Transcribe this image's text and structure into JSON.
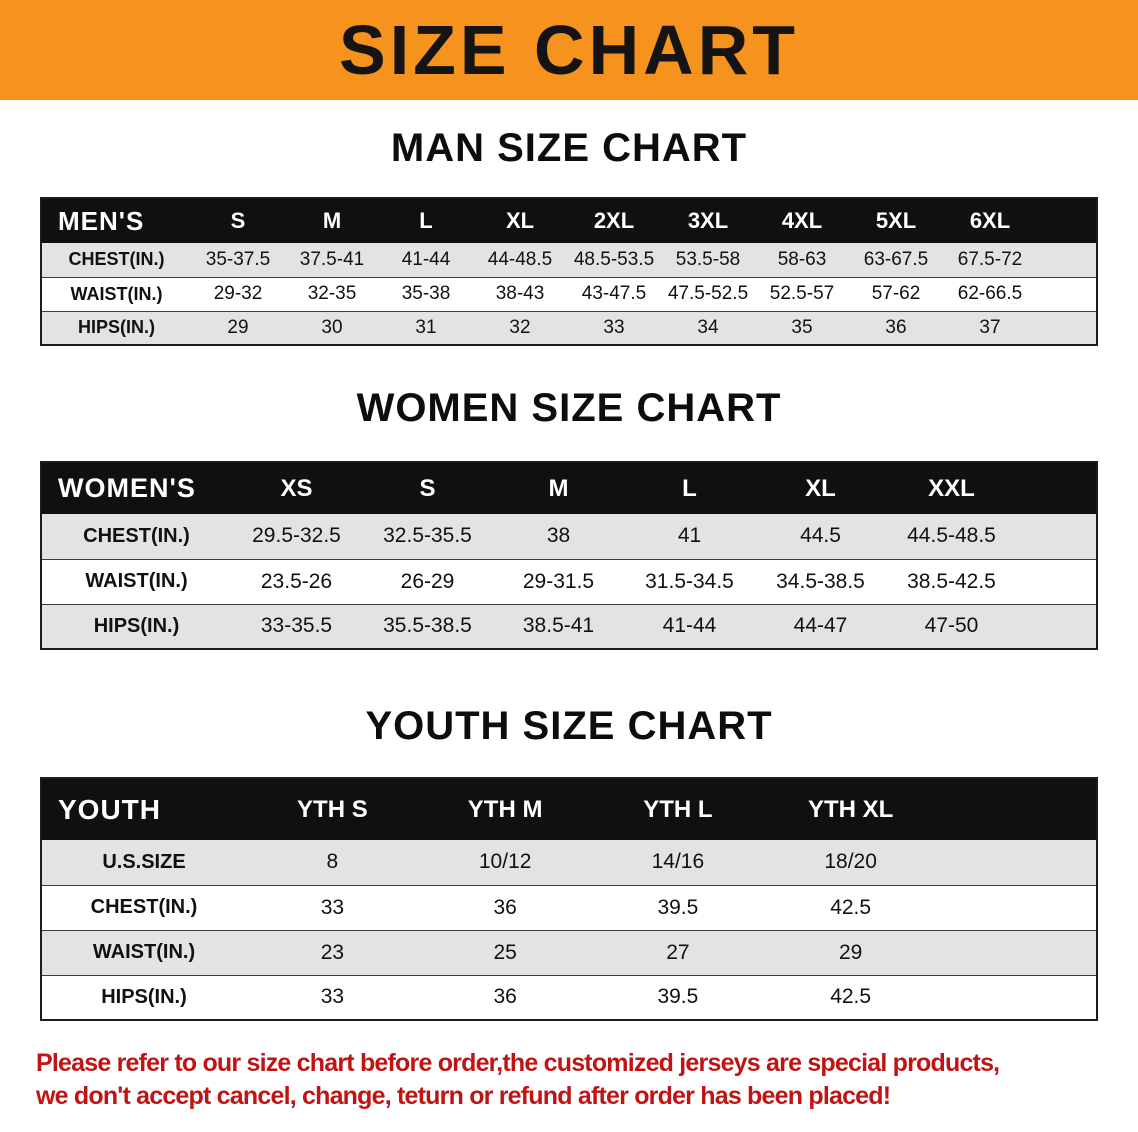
{
  "banner": {
    "title": "SIZE CHART",
    "bg_color": "#F6921E",
    "text_color": "#141414"
  },
  "colors": {
    "table_header_bg": "#101010",
    "row_shade": "#E3E3E3"
  },
  "chart_data": [
    {
      "type": "table",
      "title": "MAN SIZE CHART",
      "header_label": "MEN'S",
      "columns": [
        "S",
        "M",
        "L",
        "XL",
        "2XL",
        "3XL",
        "4XL",
        "5XL",
        "6XL"
      ],
      "rows": [
        {
          "label": "CHEST(IN.)",
          "values": [
            "35-37.5",
            "37.5-41",
            "41-44",
            "44-48.5",
            "48.5-53.5",
            "53.5-58",
            "58-63",
            "63-67.5",
            "67.5-72"
          ]
        },
        {
          "label": "WAIST(IN.)",
          "values": [
            "29-32",
            "32-35",
            "35-38",
            "38-43",
            "43-47.5",
            "47.5-52.5",
            "52.5-57",
            "57-62",
            "62-66.5"
          ]
        },
        {
          "label": "HIPS(IN.)",
          "values": [
            "29",
            "30",
            "31",
            "32",
            "33",
            "34",
            "35",
            "36",
            "37"
          ]
        }
      ]
    },
    {
      "type": "table",
      "title": "WOMEN SIZE CHART",
      "header_label": "WOMEN'S",
      "columns": [
        "XS",
        "S",
        "M",
        "L",
        "XL",
        "XXL"
      ],
      "rows": [
        {
          "label": "CHEST(IN.)",
          "values": [
            "29.5-32.5",
            "32.5-35.5",
            "38",
            "41",
            "44.5",
            "44.5-48.5"
          ]
        },
        {
          "label": "WAIST(IN.)",
          "values": [
            "23.5-26",
            "26-29",
            "29-31.5",
            "31.5-34.5",
            "34.5-38.5",
            "38.5-42.5"
          ]
        },
        {
          "label": "HIPS(IN.)",
          "values": [
            "33-35.5",
            "35.5-38.5",
            "38.5-41",
            "41-44",
            "44-47",
            "47-50"
          ]
        }
      ]
    },
    {
      "type": "table",
      "title": "YOUTH SIZE CHART",
      "header_label": "YOUTH",
      "columns": [
        "YTH S",
        "YTH M",
        "YTH L",
        "YTH XL"
      ],
      "rows": [
        {
          "label": "U.S.SIZE",
          "values": [
            "8",
            "10/12",
            "14/16",
            "18/20"
          ]
        },
        {
          "label": "CHEST(IN.)",
          "values": [
            "33",
            "36",
            "39.5",
            "42.5"
          ]
        },
        {
          "label": "WAIST(IN.)",
          "values": [
            "23",
            "25",
            "27",
            "29"
          ]
        },
        {
          "label": "HIPS(IN.)",
          "values": [
            "33",
            "36",
            "39.5",
            "42.5"
          ]
        }
      ]
    }
  ],
  "footer": {
    "line1": "Please refer to our size chart before order,the customized jerseys are special products,",
    "line2": "we don't accept cancel, change, teturn or refund after order has been placed!",
    "text_color": "#C01414"
  }
}
